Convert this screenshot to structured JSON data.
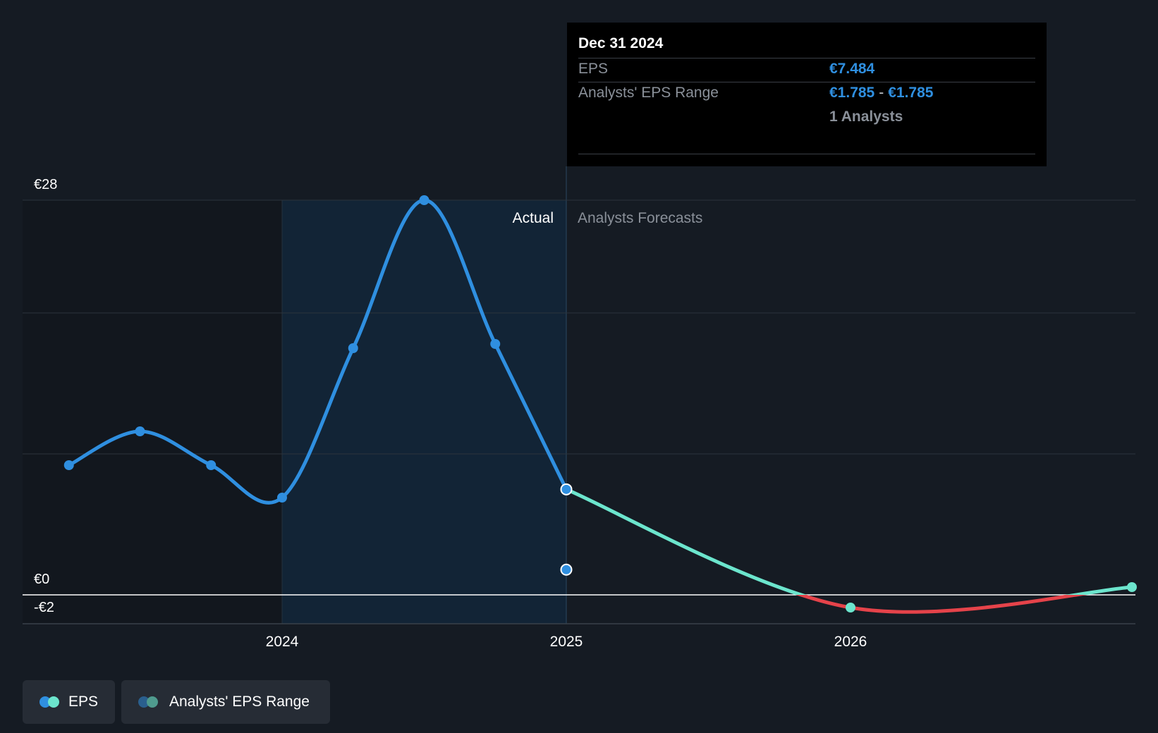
{
  "chart_data": {
    "type": "line",
    "y_ticks": [
      {
        "value": 28,
        "label": "€28"
      },
      {
        "value": 0,
        "label": "€0"
      },
      {
        "value": -2,
        "label": "-€2"
      }
    ],
    "x_ticks": [
      {
        "value": 2024.0,
        "label": "2024"
      },
      {
        "value": 2025.0,
        "label": "2025"
      },
      {
        "value": 2026.0,
        "label": "2026"
      }
    ],
    "ylim": [
      -2,
      28
    ],
    "xlim": [
      2023.12,
      2026.99
    ],
    "grid": true,
    "region_labels": {
      "actual": "Actual",
      "forecast": "Analysts Forecasts"
    },
    "series": [
      {
        "name": "EPS",
        "kind": "actual",
        "color": "#2f8fe0",
        "x": [
          2023.25,
          2023.5,
          2023.75,
          2024.0,
          2024.25,
          2024.5,
          2024.75,
          2025.0
        ],
        "y": [
          9.2,
          11.6,
          9.2,
          6.9,
          17.5,
          28.0,
          17.8,
          7.484
        ]
      },
      {
        "name": "EPS",
        "kind": "forecast",
        "color_positive": "#6ce5cd",
        "color_negative": "#e5434a",
        "x": [
          2025.0,
          2026.0,
          2026.99
        ],
        "y": [
          7.484,
          -0.9,
          0.55
        ]
      },
      {
        "name": "Analysts' EPS Range",
        "kind": "range",
        "color": "#2f8fe0",
        "x": [
          2025.0
        ],
        "y": [
          1.785
        ]
      }
    ]
  },
  "tooltip": {
    "date": "Dec 31 2024",
    "eps_label": "EPS",
    "eps_value": "€7.484",
    "range_label": "Analysts' EPS Range",
    "range_low": "€1.785",
    "range_sep": "-",
    "range_high": "€1.785",
    "analysts": "1 Analysts"
  },
  "legend": {
    "items": [
      {
        "label": "EPS",
        "colors": [
          "#2f8fe0",
          "#6ce5cd"
        ]
      },
      {
        "label": "Analysts' EPS Range",
        "colors": [
          "#2a5f8e",
          "#4f9b8e"
        ]
      }
    ]
  }
}
